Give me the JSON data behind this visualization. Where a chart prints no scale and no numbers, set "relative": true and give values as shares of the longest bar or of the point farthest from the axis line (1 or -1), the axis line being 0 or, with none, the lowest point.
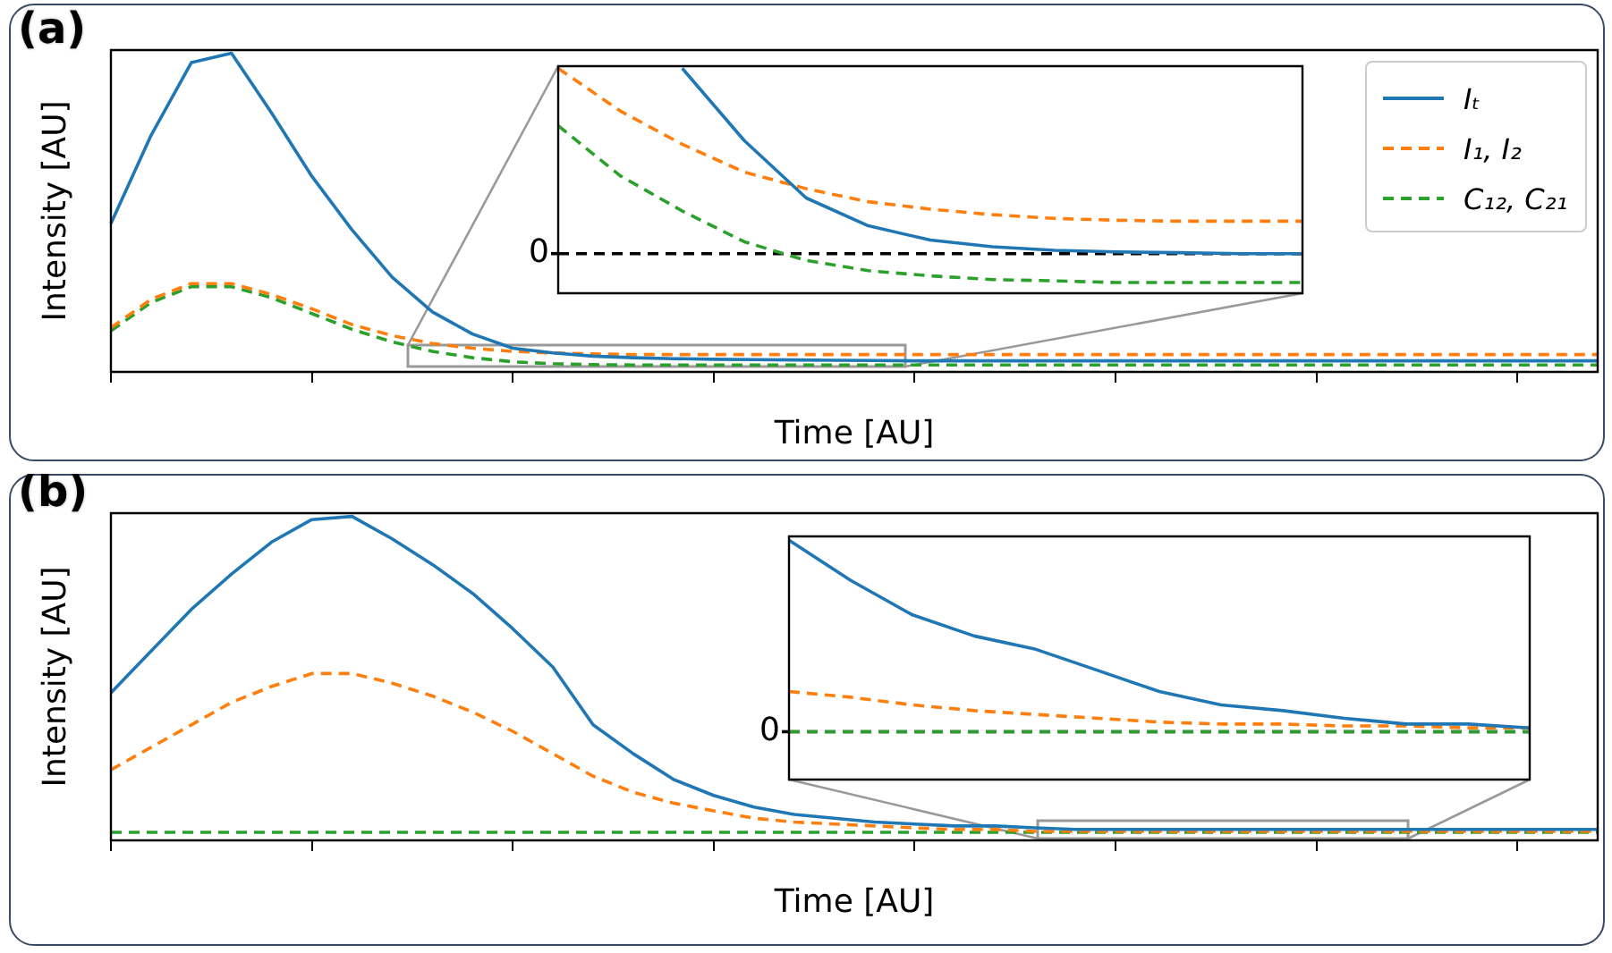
{
  "chart_data": [
    {
      "type": "line",
      "title": "(a)",
      "xlabel": "Time [AU]",
      "ylabel": "Intensity [AU]",
      "relative": true,
      "legend": "top right",
      "categories": [
        null,
        null,
        null,
        null,
        null,
        null,
        null,
        null,
        null,
        null,
        null,
        null,
        null,
        null,
        null,
        null,
        null,
        null,
        null,
        null,
        null,
        null,
        null,
        null,
        null,
        null,
        null,
        null,
        null,
        null,
        null,
        null,
        null,
        null,
        null,
        null,
        null,
        null
      ],
      "series": [
        {
          "name": "Iₜ",
          "color": "#1f77b4",
          "line_style": "solid",
          "values": [
            0.46,
            0.74,
            0.97,
            1,
            0.81,
            0.61,
            0.44,
            0.29,
            0.18,
            0.11,
            0.065,
            0.05,
            0.04,
            0.035,
            0.032,
            0.03,
            0.029,
            0.028,
            0.027,
            0.026,
            0.025,
            0.025,
            0.025,
            0.025,
            0.025,
            0.025,
            0.025,
            0.025,
            0.025,
            0.025,
            0.025,
            0.025,
            0.025,
            0.025,
            0.025,
            0.025,
            0.025,
            0.025
          ]
        },
        {
          "name": "I₁, I₂",
          "color": "#ff7f0e",
          "line_style": "dashed",
          "values": [
            0.13,
            0.22,
            0.27,
            0.27,
            0.235,
            0.19,
            0.14,
            0.105,
            0.08,
            0.065,
            0.055,
            0.05,
            0.047,
            0.045,
            0.045,
            0.045,
            0.045,
            0.045,
            0.045,
            0.045,
            0.045,
            0.045,
            0.045,
            0.045,
            0.045,
            0.045,
            0.045,
            0.045,
            0.045,
            0.045,
            0.045,
            0.045,
            0.045,
            0.045,
            0.045,
            0.045,
            0.045,
            0.045
          ]
        },
        {
          "name": "C₁₂, C₂₁",
          "color": "#2ca02c",
          "line_style": "dashed",
          "values": [
            0.12,
            0.21,
            0.26,
            0.26,
            0.225,
            0.175,
            0.125,
            0.085,
            0.055,
            0.035,
            0.022,
            0.016,
            0.013,
            0.012,
            0.012,
            0.012,
            0.012,
            0.012,
            0.012,
            0.012,
            0.012,
            0.012,
            0.012,
            0.012,
            0.012,
            0.012,
            0.012,
            0.012,
            0.012,
            0.012,
            0.012,
            0.012,
            0.012,
            0.012,
            0.012,
            0.012,
            0.012,
            0.012
          ]
        }
      ]
    },
    {
      "type": "line",
      "relative": true,
      "categories": [
        null,
        null,
        null,
        null,
        null,
        null,
        null,
        null,
        null,
        null,
        null,
        null,
        null
      ],
      "ref_lines": [
        {
          "axis": "y",
          "value": 0,
          "label": "0",
          "color": "#000000",
          "line_style": "dashed"
        }
      ],
      "series": [
        {
          "color": "#1f77b4",
          "line_style": "solid",
          "values": [
            null,
            null,
            1,
            0.61,
            0.3,
            0.15,
            0.073,
            0.037,
            0.018,
            0.009,
            0.005,
            0,
            0
          ]
        },
        {
          "color": "#ff7f0e",
          "line_style": "dashed",
          "values": [
            1,
            0.77,
            0.59,
            0.44,
            0.35,
            0.28,
            0.24,
            0.21,
            0.19,
            0.18,
            0.175,
            0.175,
            0.175
          ]
        },
        {
          "color": "#2ca02c",
          "line_style": "dashed",
          "values": [
            0.69,
            0.42,
            0.23,
            0.064,
            -0.037,
            -0.092,
            -0.12,
            -0.14,
            -0.147,
            -0.156,
            -0.156,
            -0.156,
            -0.156
          ]
        }
      ]
    },
    {
      "type": "line",
      "title": "(b)",
      "xlabel": "Time [AU]",
      "ylabel": "Intensity [AU]",
      "relative": true,
      "categories": [
        null,
        null,
        null,
        null,
        null,
        null,
        null,
        null,
        null,
        null,
        null,
        null,
        null,
        null,
        null,
        null,
        null,
        null,
        null,
        null,
        null,
        null,
        null,
        null,
        null,
        null,
        null,
        null,
        null,
        null,
        null,
        null,
        null,
        null,
        null,
        null,
        null,
        null
      ],
      "series": [
        {
          "color": "#1f77b4",
          "line_style": "solid",
          "values": [
            0.45,
            0.58,
            0.71,
            0.82,
            0.92,
            0.99,
            1,
            0.93,
            0.85,
            0.76,
            0.65,
            0.53,
            0.35,
            0.26,
            0.18,
            0.13,
            0.094,
            0.071,
            0.059,
            0.047,
            0.041,
            0.035,
            0.035,
            0.029,
            0.024,
            0.024,
            0.024,
            0.024,
            0.024,
            0.024,
            0.024,
            0.024,
            0.024,
            0.024,
            0.024,
            0.024,
            0.024,
            0.024
          ]
        },
        {
          "color": "#ff7f0e",
          "line_style": "dashed",
          "values": [
            0.21,
            0.28,
            0.35,
            0.42,
            0.47,
            0.51,
            0.51,
            0.48,
            0.44,
            0.39,
            0.33,
            0.26,
            0.19,
            0.14,
            0.106,
            0.082,
            0.059,
            0.047,
            0.041,
            0.035,
            0.029,
            0.024,
            0.024,
            0.018,
            0.018,
            0.018,
            0.018,
            0.018,
            0.018,
            0.018,
            0.018,
            0.018,
            0.018,
            0.018,
            0.018,
            0.018,
            0.018,
            0.018
          ]
        },
        {
          "color": "#2ca02c",
          "line_style": "dashed",
          "values": [
            0.015,
            0.015,
            0.015,
            0.015,
            0.015,
            0.015,
            0.015,
            0.015,
            0.015,
            0.015,
            0.015,
            0.015,
            0.015,
            0.015,
            0.015,
            0.015,
            0.015,
            0.015,
            0.015,
            0.015,
            0.015,
            0.015,
            0.015,
            0.015,
            0.015,
            0.015,
            0.015,
            0.015,
            0.015,
            0.015,
            0.015,
            0.015,
            0.015,
            0.015,
            0.015,
            0.015,
            0.015,
            0.015
          ]
        }
      ]
    },
    {
      "type": "line",
      "relative": true,
      "categories": [
        null,
        null,
        null,
        null,
        null,
        null,
        null,
        null,
        null,
        null,
        null,
        null,
        null
      ],
      "ref_lines": [
        {
          "axis": "y",
          "value": 0,
          "label": "0",
          "color": "#000000",
          "line_style": "dashed"
        }
      ],
      "series": [
        {
          "color": "#1f77b4",
          "line_style": "solid",
          "values": [
            1,
            0.79,
            0.61,
            0.5,
            0.43,
            0.32,
            0.21,
            0.14,
            0.11,
            0.07,
            0.04,
            0.04,
            0.02
          ]
        },
        {
          "color": "#ff7f0e",
          "line_style": "dashed",
          "values": [
            0.21,
            0.18,
            0.14,
            0.11,
            0.09,
            0.07,
            0.05,
            0.04,
            0.04,
            0.03,
            0.03,
            0.02,
            0.02
          ]
        },
        {
          "color": "#2ca02c",
          "line_style": "dashed",
          "values": [
            0,
            0,
            0,
            0,
            0,
            0,
            0,
            0,
            0,
            0,
            0,
            0,
            0
          ]
        }
      ]
    }
  ]
}
